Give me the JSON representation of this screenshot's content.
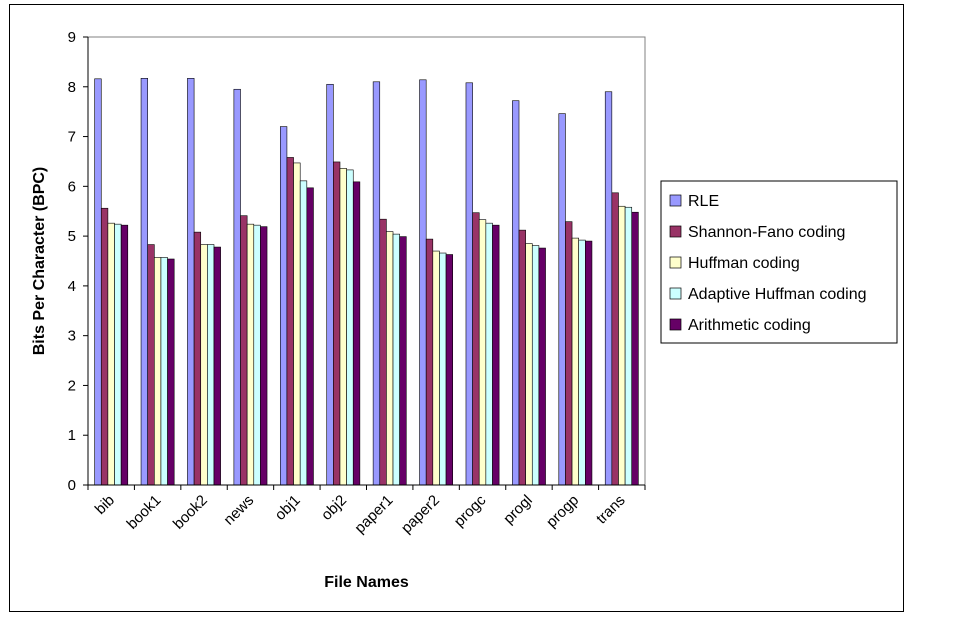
{
  "chart_data": {
    "type": "bar",
    "title": "",
    "xlabel": "File Names",
    "ylabel": "Bits Per Character (BPC)",
    "ylim": [
      0,
      9
    ],
    "yticks": [
      "0",
      "1",
      "2",
      "3",
      "4",
      "5",
      "6",
      "7",
      "8",
      "9"
    ],
    "grid": false,
    "legend_position": "right",
    "categories": [
      "bib",
      "book1",
      "book2",
      "news",
      "obj1",
      "obj2",
      "paper1",
      "paper2",
      "progc",
      "progl",
      "progp",
      "trans"
    ],
    "series": [
      {
        "name": "RLE",
        "color": "#9999FF",
        "values": [
          8.16,
          8.17,
          8.17,
          7.95,
          7.2,
          8.05,
          8.1,
          8.14,
          8.08,
          7.72,
          7.46,
          7.9
        ]
      },
      {
        "name": "Shannon-Fano coding",
        "color": "#993366",
        "values": [
          5.56,
          4.83,
          5.08,
          5.41,
          6.58,
          6.49,
          5.34,
          4.94,
          5.47,
          5.12,
          5.29,
          5.87
        ]
      },
      {
        "name": "Huffman coding",
        "color": "#FFFFCC",
        "values": [
          5.26,
          4.57,
          4.83,
          5.24,
          6.47,
          6.36,
          5.09,
          4.7,
          5.33,
          4.85,
          4.96,
          5.6
        ]
      },
      {
        "name": "Adaptive Huffman coding",
        "color": "#CCFFFF",
        "values": [
          5.24,
          4.57,
          4.83,
          5.22,
          6.11,
          6.33,
          5.04,
          4.66,
          5.26,
          4.81,
          4.92,
          5.58
        ]
      },
      {
        "name": "Arithmetic coding",
        "color": "#660066",
        "values": [
          5.22,
          4.54,
          4.78,
          5.19,
          5.97,
          6.09,
          4.99,
          4.63,
          5.22,
          4.76,
          4.9,
          5.48
        ]
      }
    ]
  }
}
